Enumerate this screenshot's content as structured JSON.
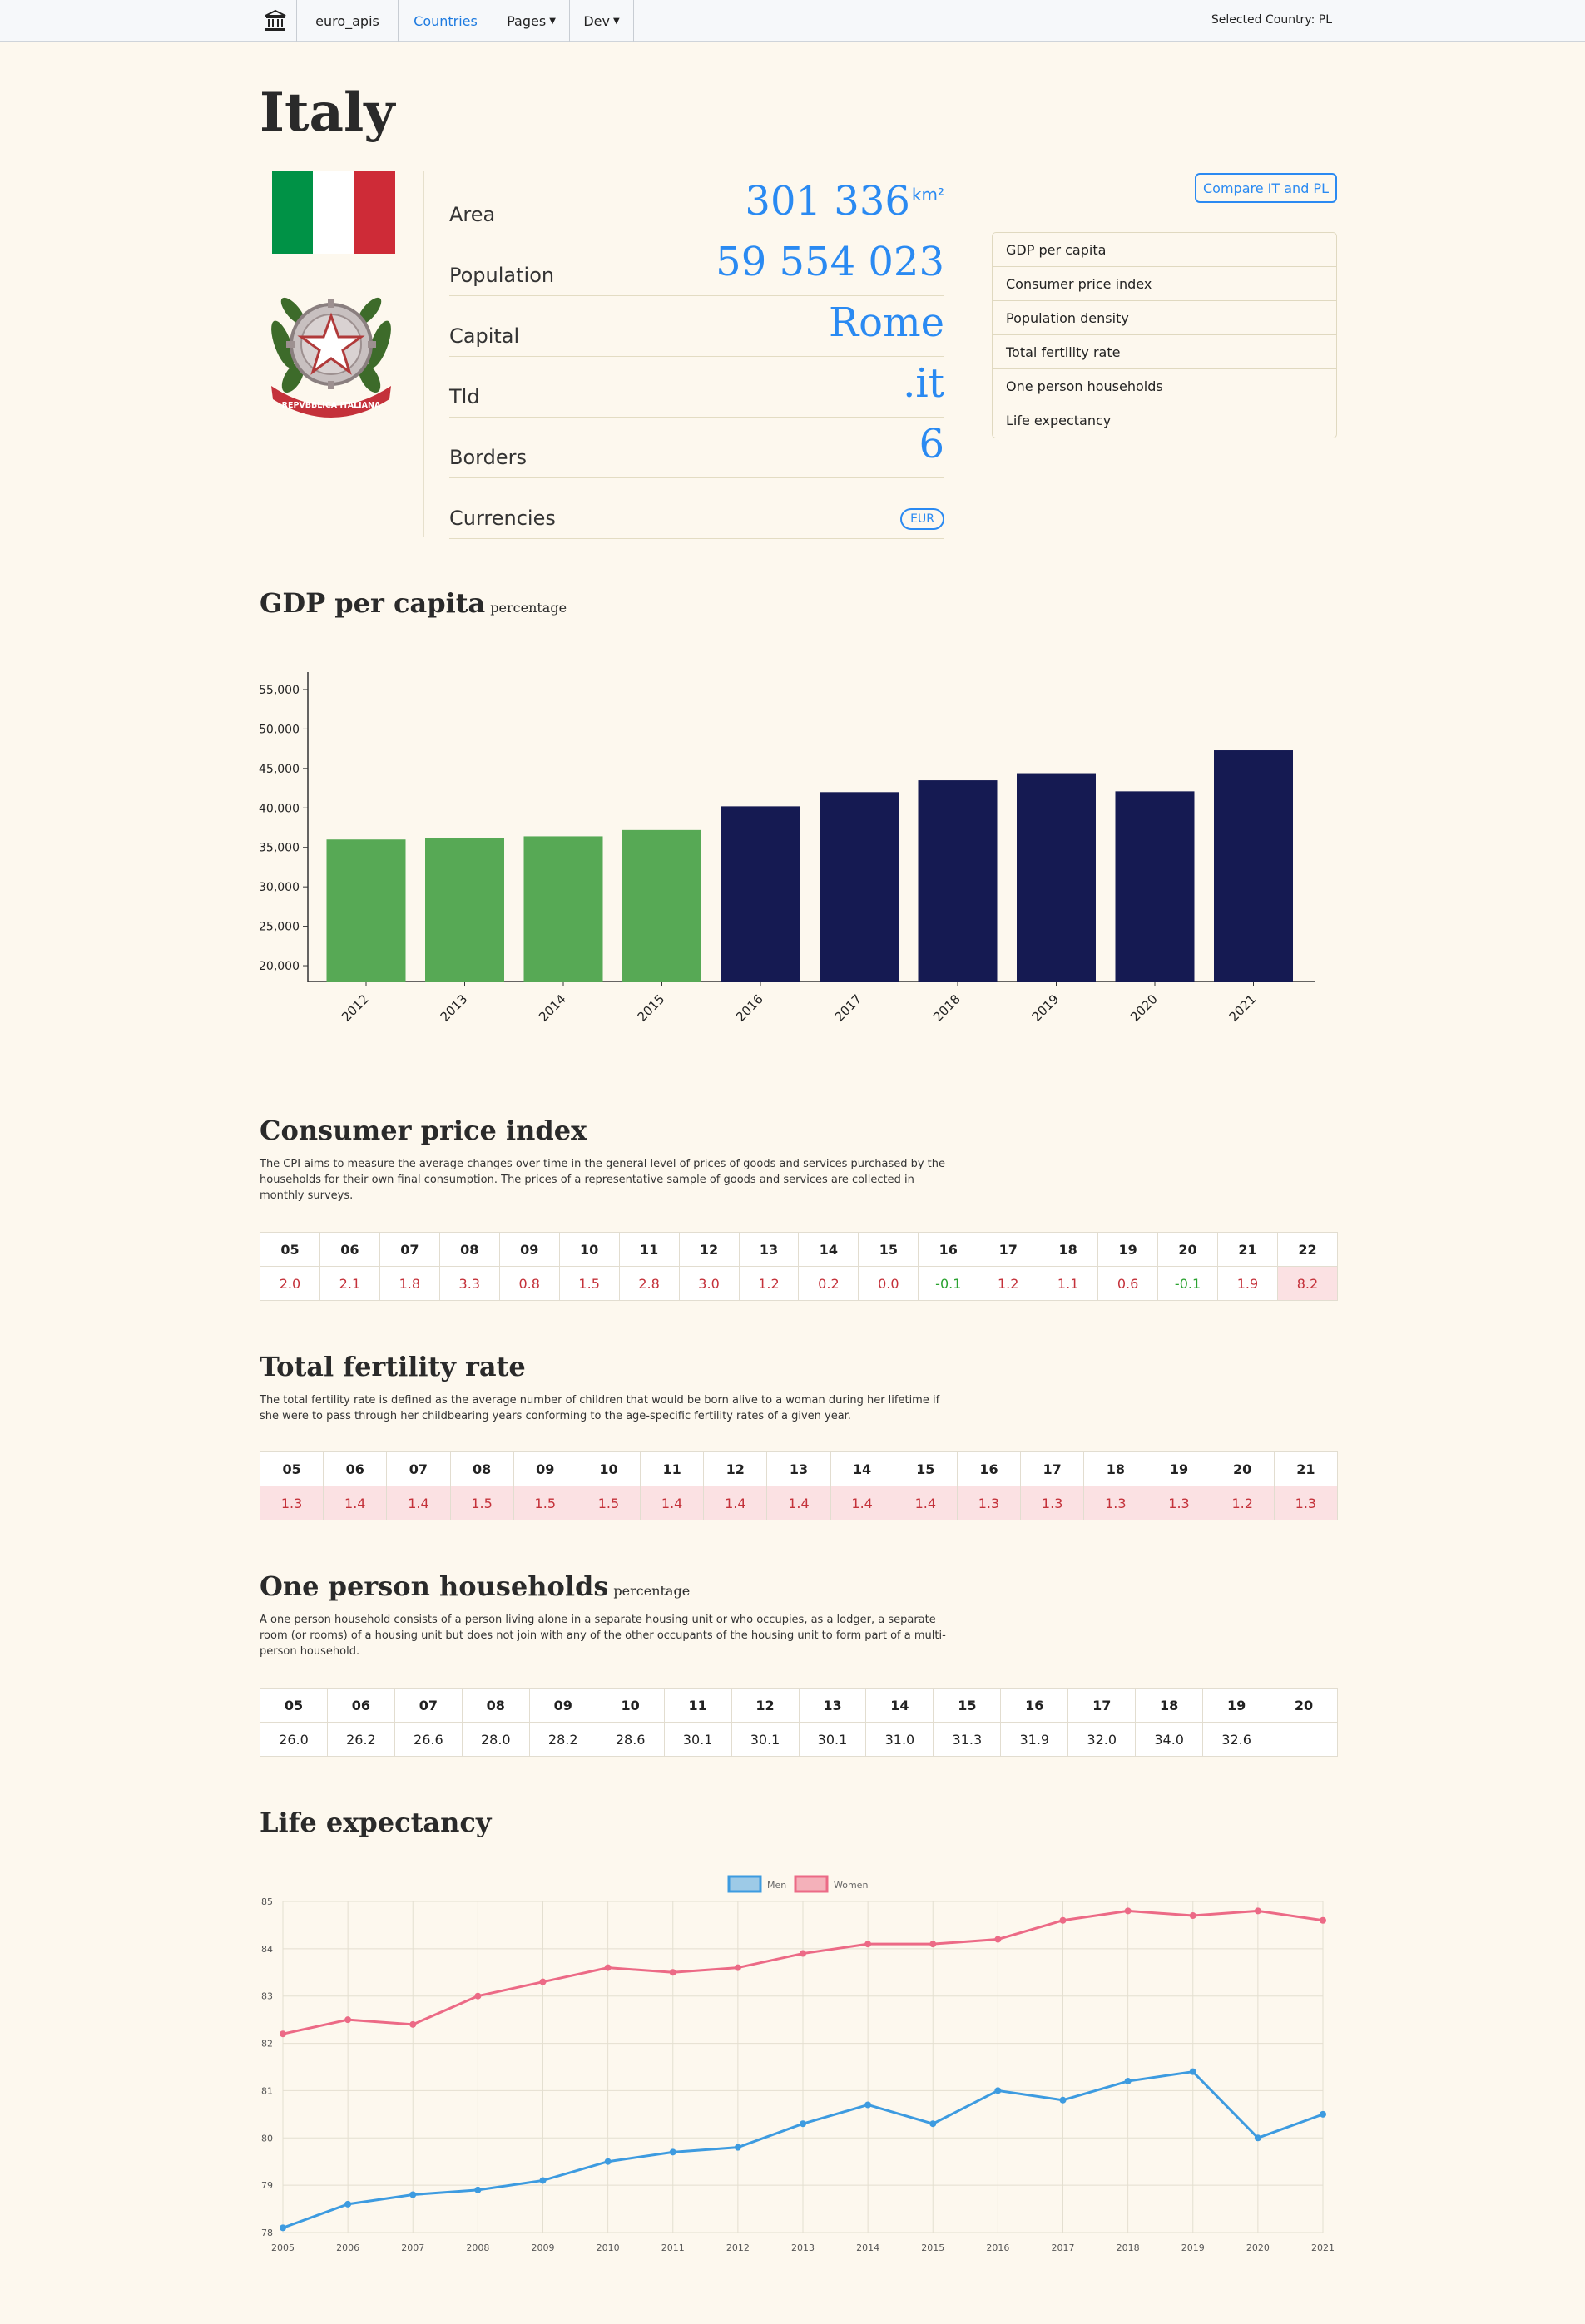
{
  "nav": {
    "brand": "euro_apis",
    "countries": "Countries",
    "pages": "Pages",
    "dev": "Dev",
    "selected_country": "Selected Country: PL"
  },
  "country": {
    "name": "Italy",
    "flag_colors": [
      "#009246",
      "#ffffff",
      "#ce2b37"
    ],
    "emblem_text": "REPVBBLICA ITALIANA",
    "facts": [
      {
        "label": "Area",
        "value": "301 336",
        "unit": "km²"
      },
      {
        "label": "Population",
        "value": "59 554 023"
      },
      {
        "label": "Capital",
        "value": "Rome"
      },
      {
        "label": "Tld",
        "value": ".it"
      },
      {
        "label": "Borders",
        "value": "6"
      }
    ],
    "currencies_label": "Currencies",
    "currency": "EUR"
  },
  "compare_button": "Compare IT and PL",
  "section_links": [
    "GDP per capita",
    "Consumer price index",
    "Population density",
    "Total fertility rate",
    "One person households",
    "Life expectancy"
  ],
  "gdp": {
    "title": "GDP per capita",
    "subtitle": "percentage"
  },
  "cpi": {
    "title": "Consumer price index",
    "description": "The CPI aims to measure the average changes over time in the general level of prices of goods and services purchased by the households for their own final consumption. The prices of a representative sample of goods and services are collected in monthly surveys.",
    "years": [
      "05",
      "06",
      "07",
      "08",
      "09",
      "10",
      "11",
      "12",
      "13",
      "14",
      "15",
      "16",
      "17",
      "18",
      "19",
      "20",
      "21",
      "22"
    ],
    "values": [
      "2.0",
      "2.1",
      "1.8",
      "3.3",
      "0.8",
      "1.5",
      "2.8",
      "3.0",
      "1.2",
      "0.2",
      "0.0",
      "-0.1",
      "1.2",
      "1.1",
      "0.6",
      "-0.1",
      "1.9",
      "8.2"
    ]
  },
  "fertility": {
    "title": "Total fertility rate",
    "description": "The total fertility rate is defined as the average number of children that would be born alive to a woman during her lifetime if she were to pass through her childbearing years conforming to the age-specific fertility rates of a given year.",
    "years": [
      "05",
      "06",
      "07",
      "08",
      "09",
      "10",
      "11",
      "12",
      "13",
      "14",
      "15",
      "16",
      "17",
      "18",
      "19",
      "20",
      "21"
    ],
    "values": [
      "1.3",
      "1.4",
      "1.4",
      "1.5",
      "1.5",
      "1.5",
      "1.4",
      "1.4",
      "1.4",
      "1.4",
      "1.4",
      "1.3",
      "1.3",
      "1.3",
      "1.3",
      "1.2",
      "1.3"
    ]
  },
  "households": {
    "title": "One person households",
    "subtitle": "percentage",
    "description": "A one person household consists of a person living alone in a separate housing unit or who occupies, as a lodger, a separate room (or rooms) of a housing unit but does not join with any of the other occupants of the housing unit to form part of a multi-person household.",
    "years": [
      "05",
      "06",
      "07",
      "08",
      "09",
      "10",
      "11",
      "12",
      "13",
      "14",
      "15",
      "16",
      "17",
      "18",
      "19",
      "20"
    ],
    "values": [
      "26.0",
      "26.2",
      "26.6",
      "28.0",
      "28.2",
      "28.6",
      "30.1",
      "30.1",
      "30.1",
      "31.0",
      "31.3",
      "31.9",
      "32.0",
      "34.0",
      "32.6",
      ""
    ]
  },
  "life": {
    "title": "Life expectancy"
  },
  "chart_data": [
    {
      "type": "bar",
      "title": "GDP per capita",
      "subtitle": "percentage",
      "categories": [
        "2012",
        "2013",
        "2014",
        "2015",
        "2016",
        "2017",
        "2018",
        "2019",
        "2020",
        "2021"
      ],
      "values": [
        36000,
        36200,
        36400,
        37200,
        40200,
        42000,
        43500,
        44400,
        42100,
        47300
      ],
      "colors": [
        "#57a955",
        "#57a955",
        "#57a955",
        "#57a955",
        "#151a52",
        "#151a52",
        "#151a52",
        "#151a52",
        "#151a52",
        "#151a52"
      ],
      "yticks": [
        20000,
        25000,
        30000,
        35000,
        40000,
        45000,
        50000,
        55000
      ],
      "ytick_labels": [
        "20,000",
        "25,000",
        "30,000",
        "35,000",
        "40,000",
        "45,000",
        "50,000",
        "55,000"
      ],
      "ylim": [
        18000,
        57000
      ],
      "grid": false
    },
    {
      "type": "line",
      "title": "Life expectancy",
      "x": [
        "2005",
        "2006",
        "2007",
        "2008",
        "2009",
        "2010",
        "2011",
        "2012",
        "2013",
        "2014",
        "2015",
        "2016",
        "2017",
        "2018",
        "2019",
        "2020",
        "2021"
      ],
      "series": [
        {
          "name": "Men",
          "color": "#3d9be0",
          "values": [
            78.1,
            78.6,
            78.8,
            78.9,
            79.1,
            79.5,
            79.7,
            79.8,
            80.3,
            80.7,
            80.3,
            81.0,
            80.8,
            81.2,
            81.4,
            80.0,
            80.5
          ]
        },
        {
          "name": "Women",
          "color": "#ec6a86",
          "values": [
            82.2,
            82.5,
            82.4,
            83.0,
            83.3,
            83.6,
            83.5,
            83.6,
            83.9,
            84.1,
            84.1,
            84.2,
            84.6,
            84.8,
            84.7,
            84.8,
            84.6
          ]
        }
      ],
      "ylim": [
        78,
        85
      ],
      "yticks": [
        78,
        79,
        80,
        81,
        82,
        83,
        84,
        85
      ],
      "legend": "top-center",
      "grid": true
    }
  ]
}
